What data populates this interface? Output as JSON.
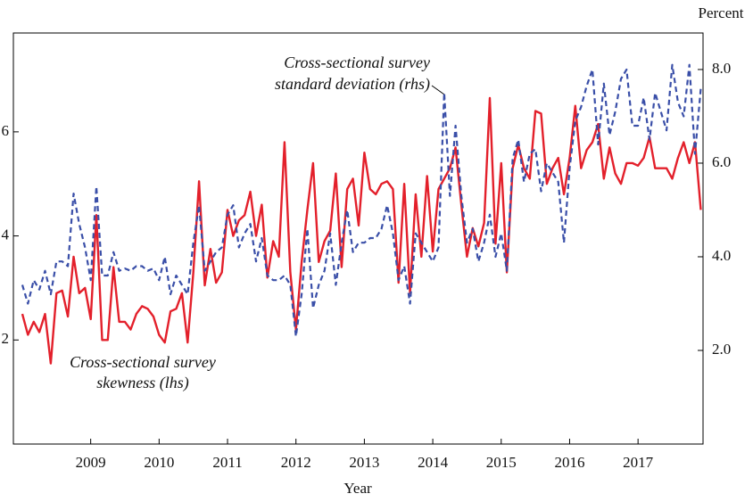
{
  "chart_data": {
    "type": "line",
    "x_label": "Year",
    "y2_label": "Percent",
    "annotations": [
      "Cross-sectional survey",
      "standard deviation (rhs)",
      "Cross-sectional survey",
      "skewness (lhs)"
    ],
    "x": [
      2008,
      2008.083,
      2008.167,
      2008.25,
      2008.333,
      2008.417,
      2008.5,
      2008.583,
      2008.667,
      2008.75,
      2008.833,
      2008.917,
      2009,
      2009.083,
      2009.167,
      2009.25,
      2009.333,
      2009.417,
      2009.5,
      2009.583,
      2009.667,
      2009.75,
      2009.833,
      2009.917,
      2010,
      2010.083,
      2010.167,
      2010.25,
      2010.333,
      2010.417,
      2010.5,
      2010.583,
      2010.667,
      2010.75,
      2010.833,
      2010.917,
      2011,
      2011.083,
      2011.167,
      2011.25,
      2011.333,
      2011.417,
      2011.5,
      2011.583,
      2011.667,
      2011.75,
      2011.833,
      2011.917,
      2012,
      2012.083,
      2012.167,
      2012.25,
      2012.333,
      2012.417,
      2012.5,
      2012.583,
      2012.667,
      2012.75,
      2012.833,
      2012.917,
      2013,
      2013.083,
      2013.167,
      2013.25,
      2013.333,
      2013.417,
      2013.5,
      2013.583,
      2013.667,
      2013.75,
      2013.833,
      2013.917,
      2014,
      2014.083,
      2014.167,
      2014.25,
      2014.333,
      2014.417,
      2014.5,
      2014.583,
      2014.667,
      2014.75,
      2014.833,
      2014.917,
      2015,
      2015.083,
      2015.167,
      2015.25,
      2015.333,
      2015.417,
      2015.5,
      2015.583,
      2015.667,
      2015.75,
      2015.833,
      2015.917,
      2016,
      2016.083,
      2016.167,
      2016.25,
      2016.333,
      2016.417,
      2016.5,
      2016.583,
      2016.667,
      2016.75,
      2016.833,
      2016.917,
      2017,
      2017.083,
      2017.167,
      2017.25,
      2017.333,
      2017.417,
      2017.5,
      2017.583,
      2017.667,
      2017.75,
      2017.833,
      2017.917
    ],
    "series": [
      {
        "name": "Cross-sectional survey skewness (lhs)",
        "color": "#e3202b",
        "axis": "y",
        "dashed": false,
        "values": [
          2.5,
          2.1,
          2.35,
          2.15,
          2.5,
          1.55,
          2.9,
          2.95,
          2.45,
          3.6,
          2.9,
          3.0,
          2.4,
          4.4,
          2.0,
          2.0,
          3.4,
          2.35,
          2.35,
          2.2,
          2.5,
          2.65,
          2.6,
          2.45,
          2.1,
          1.95,
          2.55,
          2.6,
          2.9,
          1.95,
          3.3,
          5.05,
          3.05,
          3.75,
          3.1,
          3.3,
          4.5,
          4.0,
          4.3,
          4.4,
          4.85,
          4.0,
          4.6,
          3.2,
          3.9,
          3.6,
          5.8,
          3.3,
          2.2,
          3.5,
          4.5,
          5.4,
          3.5,
          3.9,
          4.1,
          5.2,
          3.4,
          4.9,
          5.1,
          4.2,
          5.6,
          4.9,
          4.8,
          5.0,
          5.05,
          4.9,
          3.1,
          5.0,
          2.9,
          4.8,
          3.6,
          5.15,
          3.7,
          4.9,
          5.1,
          5.3,
          5.7,
          4.6,
          3.6,
          4.15,
          3.8,
          4.25,
          6.65,
          3.85,
          5.4,
          3.3,
          5.3,
          5.75,
          5.3,
          5.1,
          6.4,
          6.35,
          5.0,
          5.3,
          5.5,
          4.8,
          5.5,
          6.5,
          5.3,
          5.65,
          5.8,
          6.15,
          5.1,
          5.7,
          5.2,
          5.0,
          5.4,
          5.4,
          5.35,
          5.5,
          5.9,
          5.3,
          5.3,
          5.3,
          5.1,
          5.5,
          5.8,
          5.4,
          5.8,
          4.5
        ]
      },
      {
        "name": "Cross-sectional survey standard deviation (rhs)",
        "color": "#3a4fa8",
        "axis": "y2",
        "dashed": true,
        "values": [
          3.4,
          3.0,
          3.5,
          3.3,
          3.7,
          3.2,
          3.9,
          3.9,
          3.8,
          5.35,
          4.7,
          4.2,
          3.5,
          5.5,
          3.6,
          3.6,
          4.1,
          3.7,
          3.75,
          3.7,
          3.8,
          3.8,
          3.7,
          3.75,
          3.5,
          4.0,
          3.2,
          3.6,
          3.4,
          3.2,
          4.3,
          5.1,
          3.7,
          3.9,
          4.1,
          4.2,
          4.9,
          5.1,
          4.2,
          4.5,
          4.7,
          3.9,
          4.4,
          3.6,
          3.5,
          3.5,
          3.6,
          3.4,
          2.3,
          3.2,
          4.6,
          2.9,
          3.4,
          3.7,
          4.5,
          3.4,
          4.3,
          5.0,
          4.1,
          4.3,
          4.3,
          4.4,
          4.4,
          4.6,
          5.1,
          4.5,
          3.5,
          3.8,
          3.0,
          4.5,
          4.3,
          4.1,
          3.9,
          4.2,
          7.5,
          5.3,
          6.8,
          5.3,
          4.3,
          4.6,
          3.9,
          4.3,
          4.9,
          4.0,
          4.5,
          3.7,
          6.1,
          6.5,
          5.6,
          6.2,
          6.3,
          5.4,
          6.0,
          5.8,
          5.6,
          4.3,
          5.9,
          6.9,
          7.2,
          7.65,
          8.0,
          6.4,
          7.7,
          6.6,
          7.1,
          7.8,
          8.0,
          6.8,
          6.8,
          7.4,
          6.5,
          7.5,
          7.1,
          6.7,
          8.1,
          7.3,
          7.0,
          8.1,
          6.2,
          7.6
        ]
      }
    ],
    "xlim": [
      2007.87,
      2017.95
    ],
    "xticks": [
      2009,
      2010,
      2011,
      2012,
      2013,
      2014,
      2015,
      2016,
      2017
    ],
    "ylim": [
      0,
      7.9
    ],
    "yticks": [
      2,
      4,
      6
    ],
    "y2lim": [
      0,
      8.78
    ],
    "y2ticks": [
      {
        "value": 2,
        "label": "2.0"
      },
      {
        "value": 4,
        "label": "4.0"
      },
      {
        "value": 6,
        "label": "6.0"
      },
      {
        "value": 8,
        "label": "8.0"
      }
    ],
    "grid": false
  }
}
